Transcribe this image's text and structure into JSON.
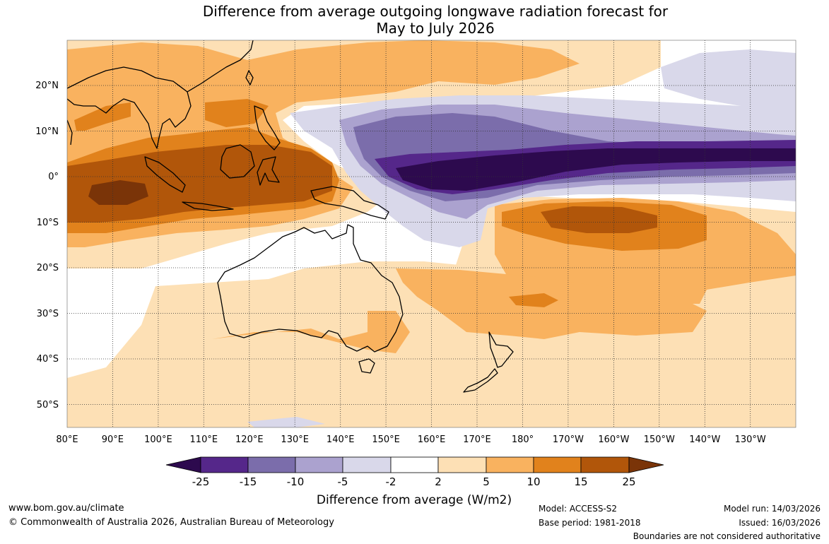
{
  "title": {
    "line1": "Difference from average outgoing longwave radiation forecast for",
    "line2": "May to July 2026"
  },
  "map": {
    "region": "Australia, Maritime Continent and western Pacific",
    "lon_labels": [
      "80°E",
      "90°E",
      "100°E",
      "110°E",
      "120°E",
      "130°E",
      "140°E",
      "150°E",
      "160°E",
      "170°E",
      "180°",
      "170°W",
      "160°W",
      "150°W",
      "140°W",
      "130°W"
    ],
    "lat_labels": [
      "20°N",
      "10°N",
      "0°",
      "10°S",
      "20°S",
      "30°S",
      "40°S",
      "50°S"
    ]
  },
  "colorbar": {
    "ticks": [
      "-25",
      "-15",
      "-10",
      "-5",
      "-2",
      "2",
      "5",
      "10",
      "15",
      "25"
    ],
    "colors": [
      "#2d0a4e",
      "#55278a",
      "#7b6dab",
      "#aba2cf",
      "#d9d8ea",
      "#ffffff",
      "#fde0b5",
      "#f9b25f",
      "#e1821c",
      "#b1560a",
      "#7a3408"
    ],
    "label": "Difference from average (W/m2)"
  },
  "footer": {
    "website": "www.bom.gov.au/climate",
    "copyright": "© Commonwealth of Australia 2026, Australian Bureau of Meteorology",
    "model": "Model: ACCESS-S2",
    "base_period": "Base period: 1981-2018",
    "model_run": "Model run: 14/03/2026",
    "issued": "Issued: 16/03/2026",
    "disclaimer": "Boundaries are not considered authoritative"
  }
}
